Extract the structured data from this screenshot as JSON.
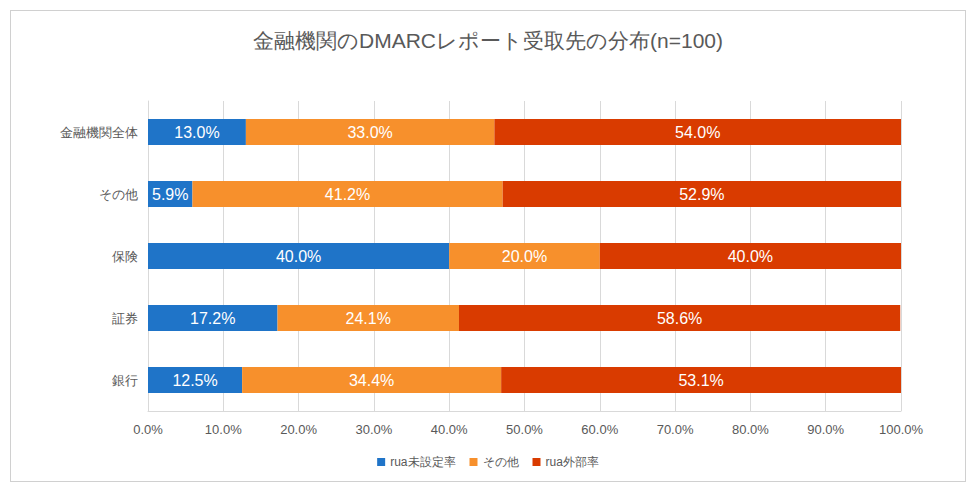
{
  "chart_data": {
    "type": "bar",
    "orientation": "horizontal",
    "stacked": true,
    "title": "金融機関のDMARCレポート受取先の分布(n=100)",
    "categories": [
      "銀行",
      "証券",
      "保険",
      "その他",
      "金融機関全体"
    ],
    "series": [
      {
        "name": "rua未設定率",
        "color": "#1f74c8",
        "values": [
          12.5,
          17.2,
          40.0,
          5.9,
          13.0
        ],
        "value_labels": [
          "12.5%",
          "17.2%",
          "40.0%",
          "5.9%",
          "13.0%"
        ]
      },
      {
        "name": "その他",
        "color": "#f7902c",
        "values": [
          34.4,
          24.1,
          20.0,
          41.2,
          33.0
        ],
        "value_labels": [
          "34.4%",
          "24.1%",
          "20.0%",
          "41.2%",
          "33.0%"
        ]
      },
      {
        "name": "rua外部率",
        "color": "#d93b00",
        "values": [
          53.1,
          58.6,
          40.0,
          52.9,
          54.0
        ],
        "value_labels": [
          "53.1%",
          "58.6%",
          "40.0%",
          "52.9%",
          "54.0%"
        ]
      }
    ],
    "xlim": [
      0,
      100
    ],
    "xticks": [
      {
        "value": 0,
        "label": "0.0%"
      },
      {
        "value": 10,
        "label": "10.0%"
      },
      {
        "value": 20,
        "label": "20.0%"
      },
      {
        "value": 30,
        "label": "30.0%"
      },
      {
        "value": 40,
        "label": "40.0%"
      },
      {
        "value": 50,
        "label": "50.0%"
      },
      {
        "value": 60,
        "label": "60.0%"
      },
      {
        "value": 70,
        "label": "70.0%"
      },
      {
        "value": 80,
        "label": "80.0%"
      },
      {
        "value": 90,
        "label": "90.0%"
      },
      {
        "value": 100,
        "label": "100.0%"
      }
    ],
    "grid": true,
    "legend": "bottom",
    "data_labels": true
  }
}
